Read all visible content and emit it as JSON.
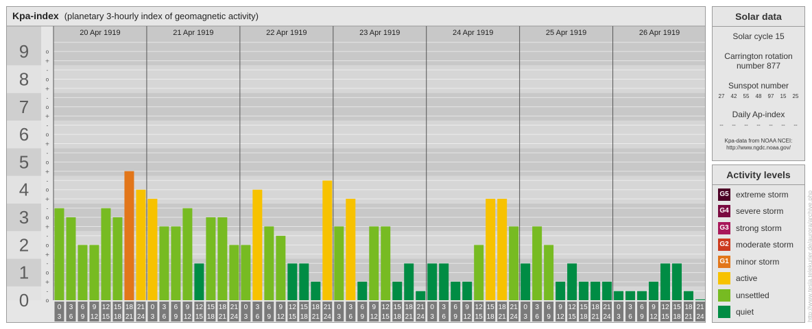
{
  "header": {
    "title": "Kpa-index",
    "subtitle": "(planetary 3-hourly index of geomagnetic activity)"
  },
  "solar": {
    "title": "Solar data",
    "cycle": "Solar cycle 15",
    "carrington_line1": "Carrington rotation",
    "carrington_line2": "number 877",
    "sunspot_label": "Sunspot number",
    "sunspots": [
      "27",
      "42",
      "55",
      "48",
      "97",
      "15",
      "25"
    ],
    "ap_label": "Daily Ap-index",
    "ap_values": [
      "--",
      "--",
      "--",
      "--",
      "--",
      "--",
      "--"
    ],
    "credit_line1": "Kpa-data from NOAA NCEI:",
    "credit_line2": "http://www.ngdc.noaa.gov/"
  },
  "legend": {
    "title": "Activity levels",
    "items": [
      {
        "badge": "G5",
        "label": "extreme storm",
        "color": "#4d0026"
      },
      {
        "badge": "G4",
        "label": "severe storm",
        "color": "#7a0a40"
      },
      {
        "badge": "G3",
        "label": "strong storm",
        "color": "#a8175a"
      },
      {
        "badge": "G2",
        "label": "moderate storm",
        "color": "#cc3a1e"
      },
      {
        "badge": "G1",
        "label": "minor storm",
        "color": "#e2761a"
      },
      {
        "badge": "",
        "label": "active",
        "color": "#f7c200"
      },
      {
        "badge": "",
        "label": "unsettled",
        "color": "#77bb22"
      },
      {
        "badge": "",
        "label": "quiet",
        "color": "#008c44"
      }
    ]
  },
  "watermark": "http://www.tesla.telekurier.de/aurora/archive.php",
  "chart_data": {
    "type": "bar",
    "ylim": [
      0,
      9
    ],
    "y_ticks": [
      "0",
      "1",
      "2",
      "3",
      "4",
      "5",
      "6",
      "7",
      "8",
      "9"
    ],
    "sub_ticks": [
      "o",
      "+",
      "-"
    ],
    "days": [
      "20 Apr 1919",
      "21 Apr 1919",
      "22 Apr 1919",
      "23 Apr 1919",
      "24 Apr 1919",
      "25 Apr 1919",
      "26 Apr 1919"
    ],
    "interval_starts": [
      "0",
      "3",
      "6",
      "9",
      "12",
      "15",
      "18",
      "21"
    ],
    "interval_ends": [
      "3",
      "6",
      "9",
      "12",
      "15",
      "18",
      "21",
      "24"
    ],
    "values": [
      3.33,
      3.0,
      2.0,
      2.0,
      3.33,
      3.0,
      4.67,
      4.0,
      3.67,
      2.67,
      2.67,
      3.33,
      1.33,
      3.0,
      3.0,
      2.0,
      2.0,
      4.0,
      2.67,
      2.33,
      1.33,
      1.33,
      0.67,
      4.33,
      2.67,
      3.67,
      0.67,
      2.67,
      2.67,
      0.67,
      1.33,
      0.33,
      1.33,
      1.33,
      0.67,
      0.67,
      2.0,
      3.67,
      3.67,
      2.67,
      1.33,
      2.67,
      2.0,
      0.67,
      1.33,
      0.67,
      0.67,
      0.67,
      0.33,
      0.33,
      0.33,
      0.67,
      1.33,
      1.33,
      0.33,
      0.0
    ],
    "colors": {
      "quiet": "#008c44",
      "unsettled": "#77bb22",
      "active": "#f7c200",
      "g1": "#e2761a",
      "g2": "#cc3a1e",
      "g3": "#a8175a",
      "g4": "#7a0a40",
      "g5": "#4d0026"
    }
  }
}
